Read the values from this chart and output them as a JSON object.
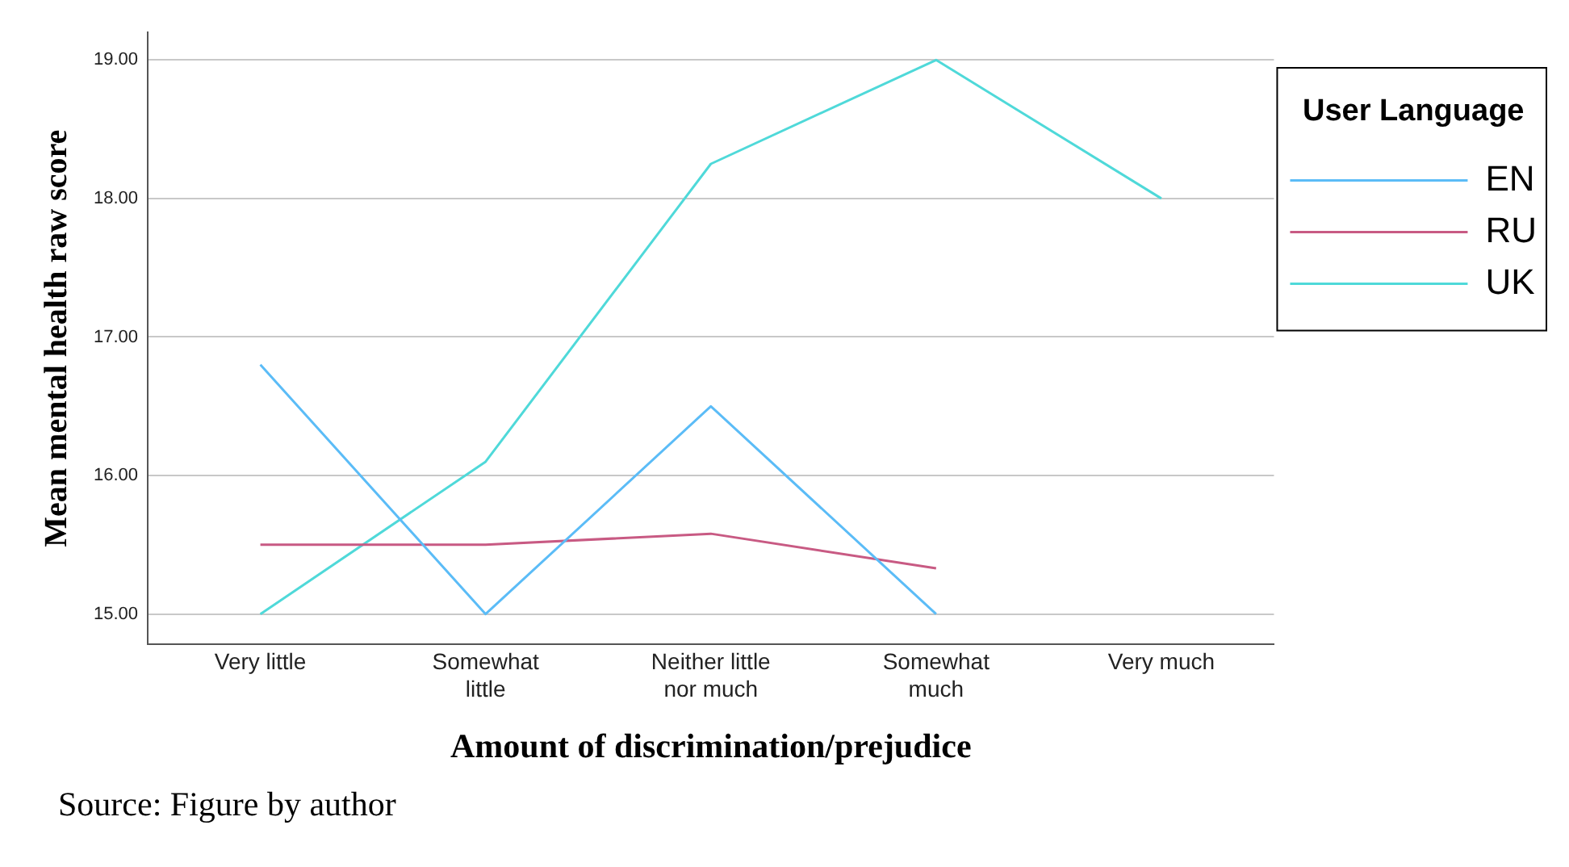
{
  "chart_data": {
    "type": "line",
    "xlabel": "Amount of discrimination/prejudice",
    "ylabel": "Mean mental health raw score",
    "legend_title": "User Language",
    "categories": [
      "Very little",
      "Somewhat little",
      "Neither little nor much",
      "Somewhat much",
      "Very much"
    ],
    "series": [
      {
        "name": "EN",
        "color": "#5bbcf7",
        "values": [
          16.8,
          15.0,
          16.5,
          15.0,
          null
        ]
      },
      {
        "name": "RU",
        "color": "#c85a83",
        "values": [
          15.5,
          15.5,
          15.58,
          15.33,
          null
        ]
      },
      {
        "name": "UK",
        "color": "#4fd9d9",
        "values": [
          15.0,
          16.1,
          18.25,
          19.0,
          18.0
        ]
      }
    ],
    "ylim": [
      14.78,
      19.2
    ],
    "yticks": [
      {
        "value": 15,
        "label": "15.00"
      },
      {
        "value": 16,
        "label": "16.00"
      },
      {
        "value": 17,
        "label": "17.00"
      },
      {
        "value": 18,
        "label": "18.00"
      },
      {
        "value": 19,
        "label": "19.00"
      }
    ],
    "grid": "y",
    "legend": "right",
    "marker": "none",
    "line_style": "solid",
    "annotations": [
      "Source: Figure by author"
    ]
  }
}
